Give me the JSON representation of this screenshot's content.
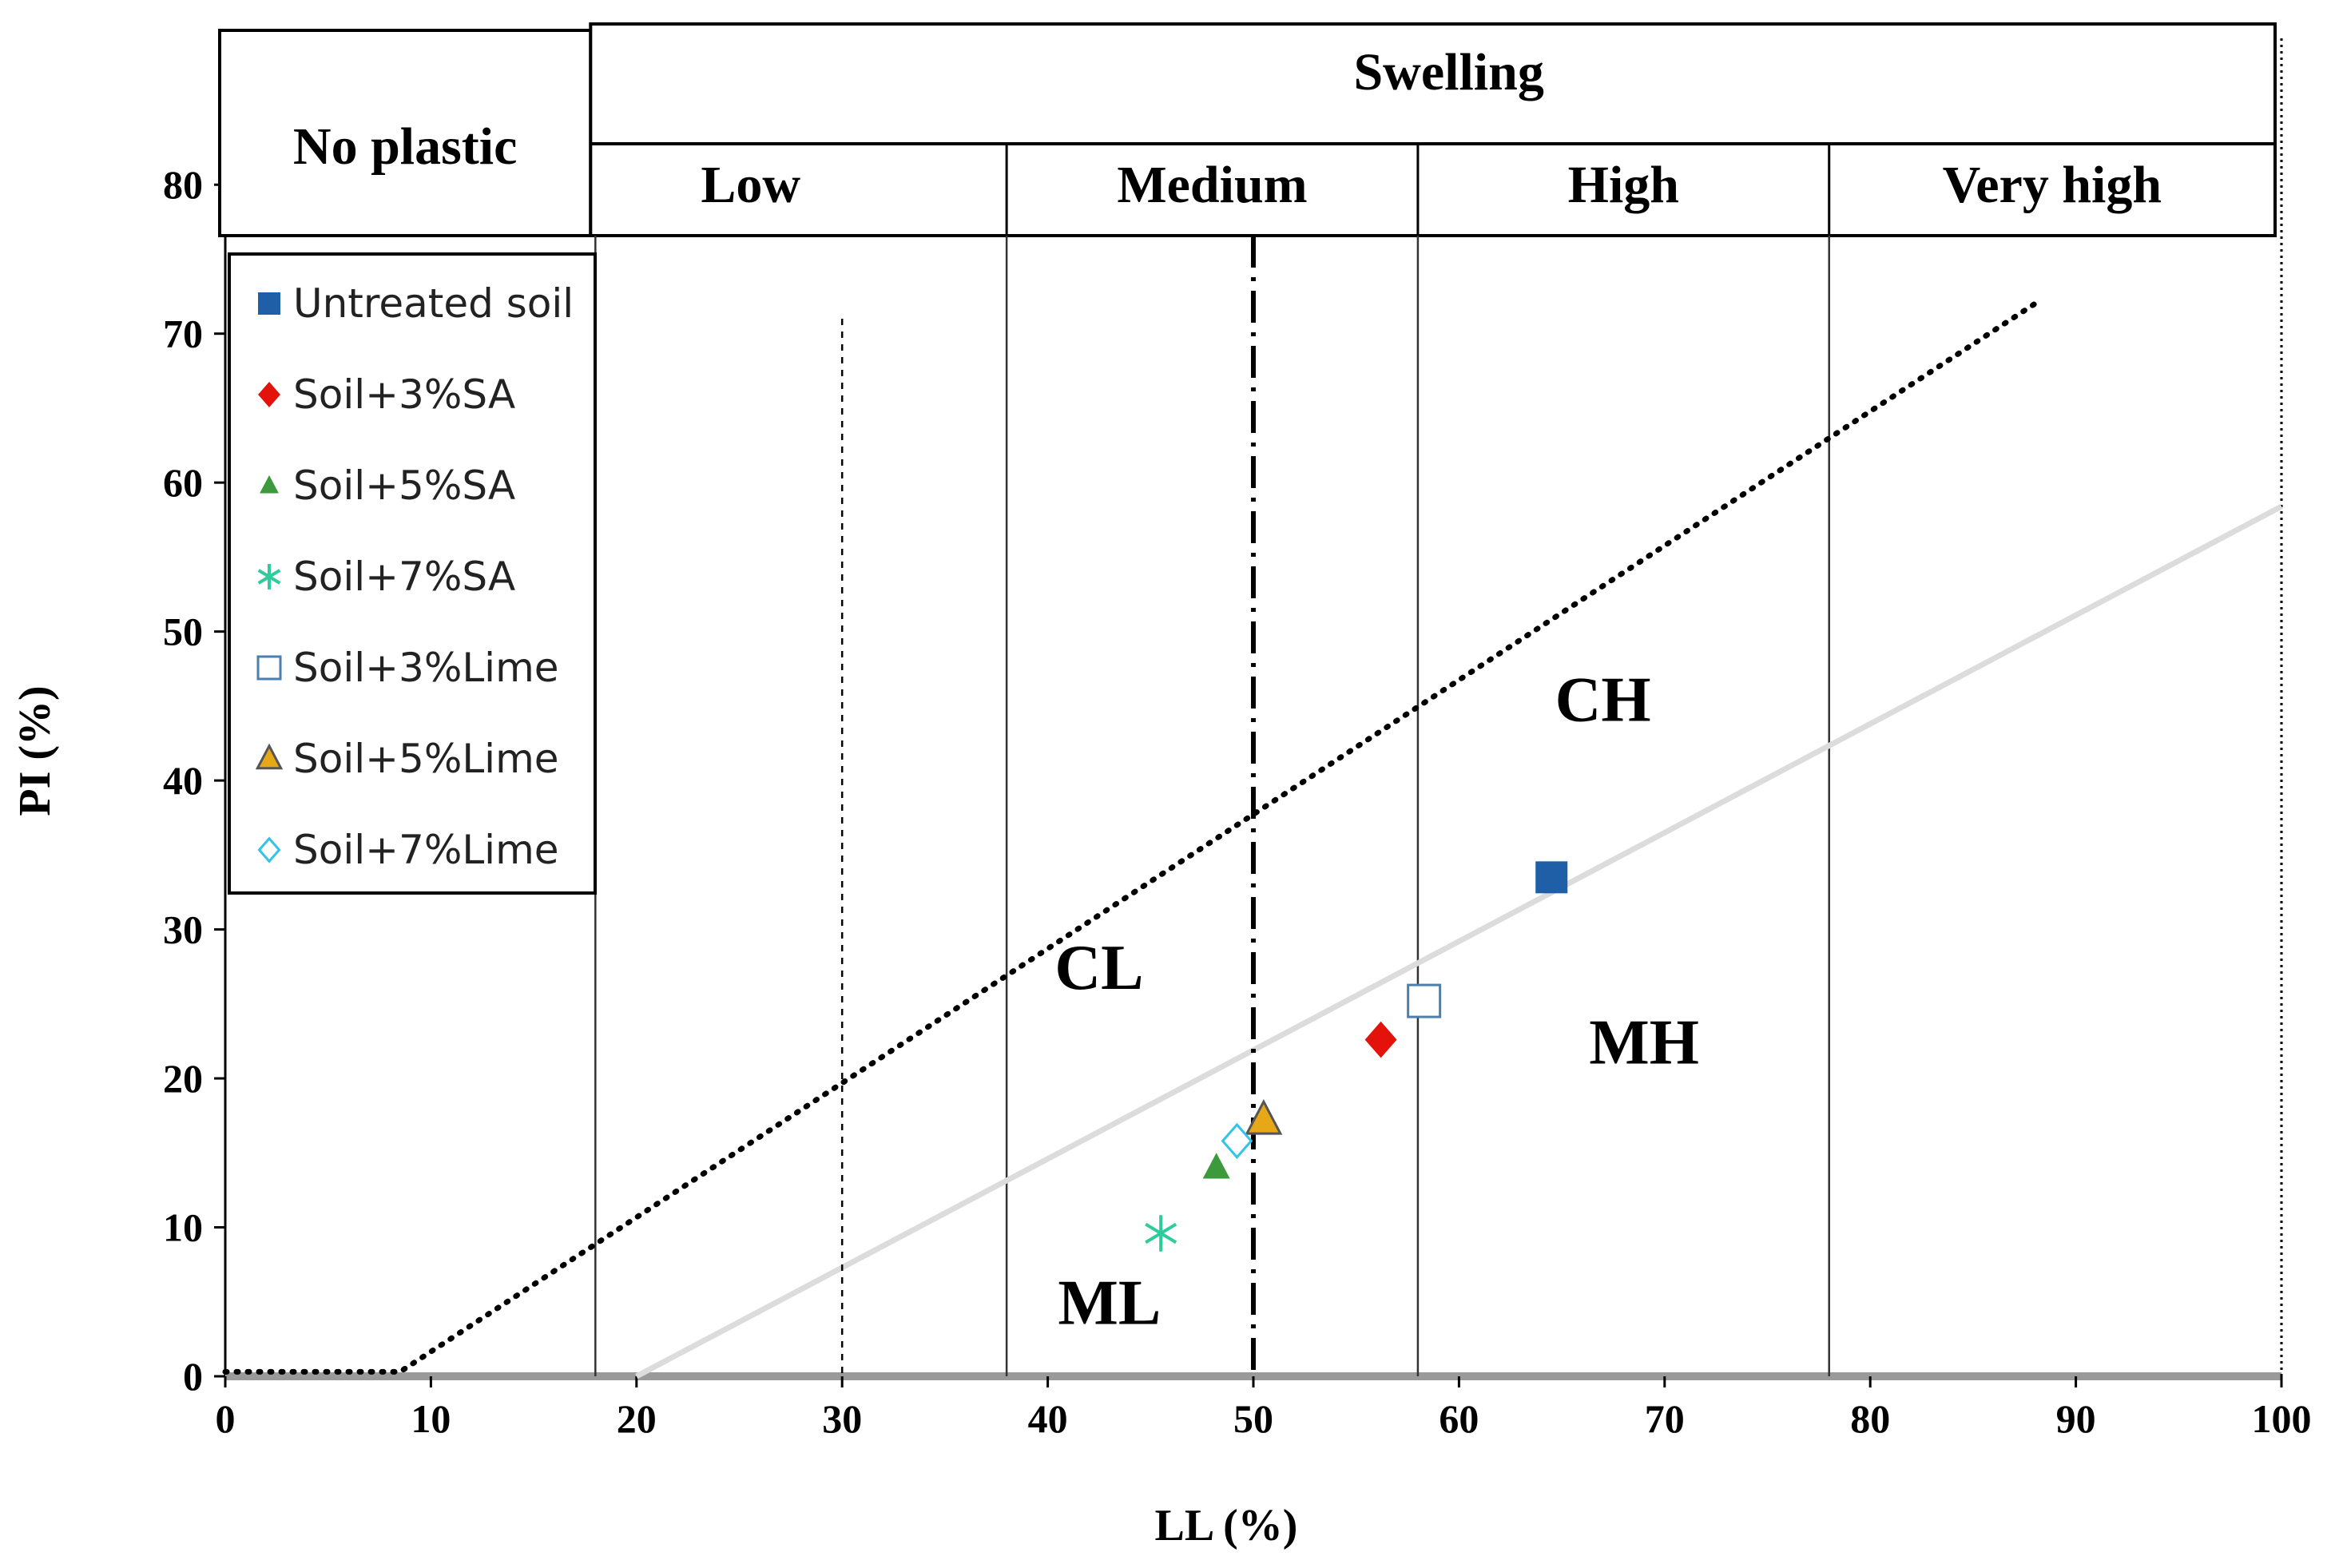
{
  "chart_data": {
    "type": "scatter",
    "title": "",
    "xlabel": "LL (%)",
    "ylabel": "PI (%)",
    "xlim": [
      0,
      100
    ],
    "ylim": [
      0,
      85
    ],
    "xticks": [
      0,
      10,
      20,
      30,
      40,
      50,
      60,
      70,
      80,
      90,
      100
    ],
    "yticks": [
      0,
      10,
      20,
      30,
      40,
      50,
      60,
      70,
      80
    ],
    "series": [
      {
        "name": "Untreated soil",
        "marker": "square-filled",
        "color": "#1f5fa8",
        "x": [
          64.5
        ],
        "y": [
          33.5
        ]
      },
      {
        "name": "Soil+3%SA",
        "marker": "diamond-filled",
        "color": "#e3120b",
        "x": [
          56.2
        ],
        "y": [
          22.6
        ]
      },
      {
        "name": "Soil+5%SA",
        "marker": "triangle-filled",
        "color": "#3c9a3c",
        "x": [
          48.2
        ],
        "y": [
          14
        ]
      },
      {
        "name": "Soil+7%SA",
        "marker": "asterisk",
        "color": "#2ecc9a",
        "x": [
          45.5
        ],
        "y": [
          9.6
        ]
      },
      {
        "name": "Soil+3%Lime",
        "marker": "square-open",
        "color": "#4a7fb0",
        "x": [
          58.3
        ],
        "y": [
          25.2
        ]
      },
      {
        "name": "Soil+5%Lime",
        "marker": "triangle-filled-outlined",
        "color": "#e6a817",
        "x": [
          50.5
        ],
        "y": [
          17.2
        ]
      },
      {
        "name": "Soil+7%Lime",
        "marker": "diamond-open",
        "color": "#31c3e8",
        "x": [
          49.2
        ],
        "y": [
          15.8
        ]
      }
    ],
    "lines": [
      {
        "name": "U-line",
        "style": "dotted",
        "points": [
          [
            0,
            0.3
          ],
          [
            8.5,
            0.3
          ],
          [
            88,
            72
          ]
        ]
      },
      {
        "name": "A-line",
        "style": "solid-light",
        "points": [
          [
            20,
            0
          ],
          [
            100,
            58.4
          ]
        ]
      },
      {
        "name": "LL=50",
        "style": "dash-dot",
        "x": 50
      },
      {
        "name": "LL=30",
        "style": "dashed",
        "x": 30,
        "y_to": 71
      }
    ],
    "zone_labels": [
      {
        "text": "CL",
        "x": 42.5,
        "y": 26
      },
      {
        "text": "CH",
        "x": 67,
        "y": 44
      },
      {
        "text": "MH",
        "x": 69,
        "y": 21
      },
      {
        "text": "ML",
        "x": 43,
        "y": 3.5
      }
    ],
    "swelling_table": {
      "no_plastic": "No plastic",
      "header": "Swelling",
      "classes": [
        {
          "label": "Low",
          "ll_from": 18,
          "ll_to": 38
        },
        {
          "label": "Medium",
          "ll_from": 38,
          "ll_to": 58
        },
        {
          "label": "High",
          "ll_from": 58,
          "ll_to": 78
        },
        {
          "label": "Very high",
          "ll_from": 78,
          "ll_to": 100
        }
      ]
    },
    "legend_position": "top-left"
  }
}
